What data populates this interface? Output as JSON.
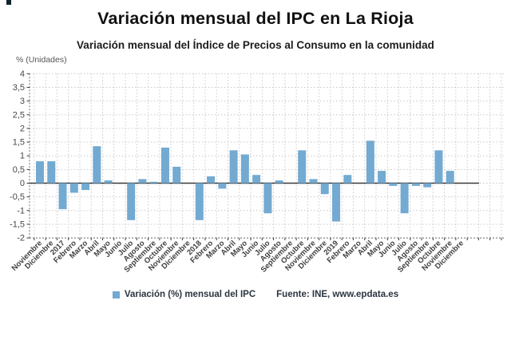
{
  "page": {
    "title": "Variación mensual del IPC en La Rioja",
    "subtitle": "Variación mensual del Índice de Precios al Consumo en la comunidad"
  },
  "chart_data": {
    "type": "bar",
    "title": "Variación mensual del IPC en La Rioja",
    "subtitle": "Variación mensual del Índice de Precios al Consumo en la comunidad",
    "ylabel": "% (Unidades)",
    "xlabel": "",
    "ylim": [
      -2,
      4
    ],
    "ytick_step": 0.5,
    "grid": true,
    "legend_position": "bottom",
    "categories": [
      "Noviembre",
      "Diciembre",
      "2017",
      "Febrero",
      "Marzo",
      "Abril",
      "Mayo",
      "Junio",
      "Julio",
      "Agosto",
      "Septiembre",
      "Octubre",
      "Noviembre",
      "Diciembre",
      "2018",
      "Febrero",
      "Marzo",
      "Abril",
      "Mayo",
      "Junio",
      "Julio",
      "Agosto",
      "Septiembre",
      "Octubre",
      "Noviembre",
      "Diciembre",
      "2019",
      "Febrero",
      "Marzo",
      "Abril",
      "Mayo",
      "Junio",
      "Julio",
      "Agosto",
      "Septiembre",
      "Octubre",
      "Noviembre",
      "Diciembre"
    ],
    "values": [
      0.8,
      0.8,
      -0.95,
      -0.35,
      -0.25,
      1.35,
      0.1,
      0,
      -1.35,
      0.15,
      0.05,
      1.3,
      0.6,
      0,
      -1.35,
      0.25,
      -0.2,
      1.2,
      1.05,
      0.3,
      -1.1,
      0.1,
      0,
      1.2,
      0.15,
      -0.4,
      -1.4,
      0.3,
      0,
      1.55,
      0.45,
      -0.1,
      -1.1,
      -0.1,
      -0.15,
      1.2,
      0.45,
      0
    ],
    "series_name": "Variación (%) mensual del IPC",
    "source": "Fuente: INE, www.epdata.es"
  },
  "legend": {
    "label": "Variación (%) mensual del IPC",
    "source": "Fuente: INE, www.epdata.es"
  },
  "colors": {
    "bar": "#73aad2",
    "grid": "#c9c9c9",
    "axis_dotted": "#6e6e6e",
    "tick": "#3a3a3a",
    "zero_line": "#3a3a3a",
    "axis_text": "#474747",
    "x_text": "#3f3f3f",
    "corner_mark": "#10242e"
  }
}
